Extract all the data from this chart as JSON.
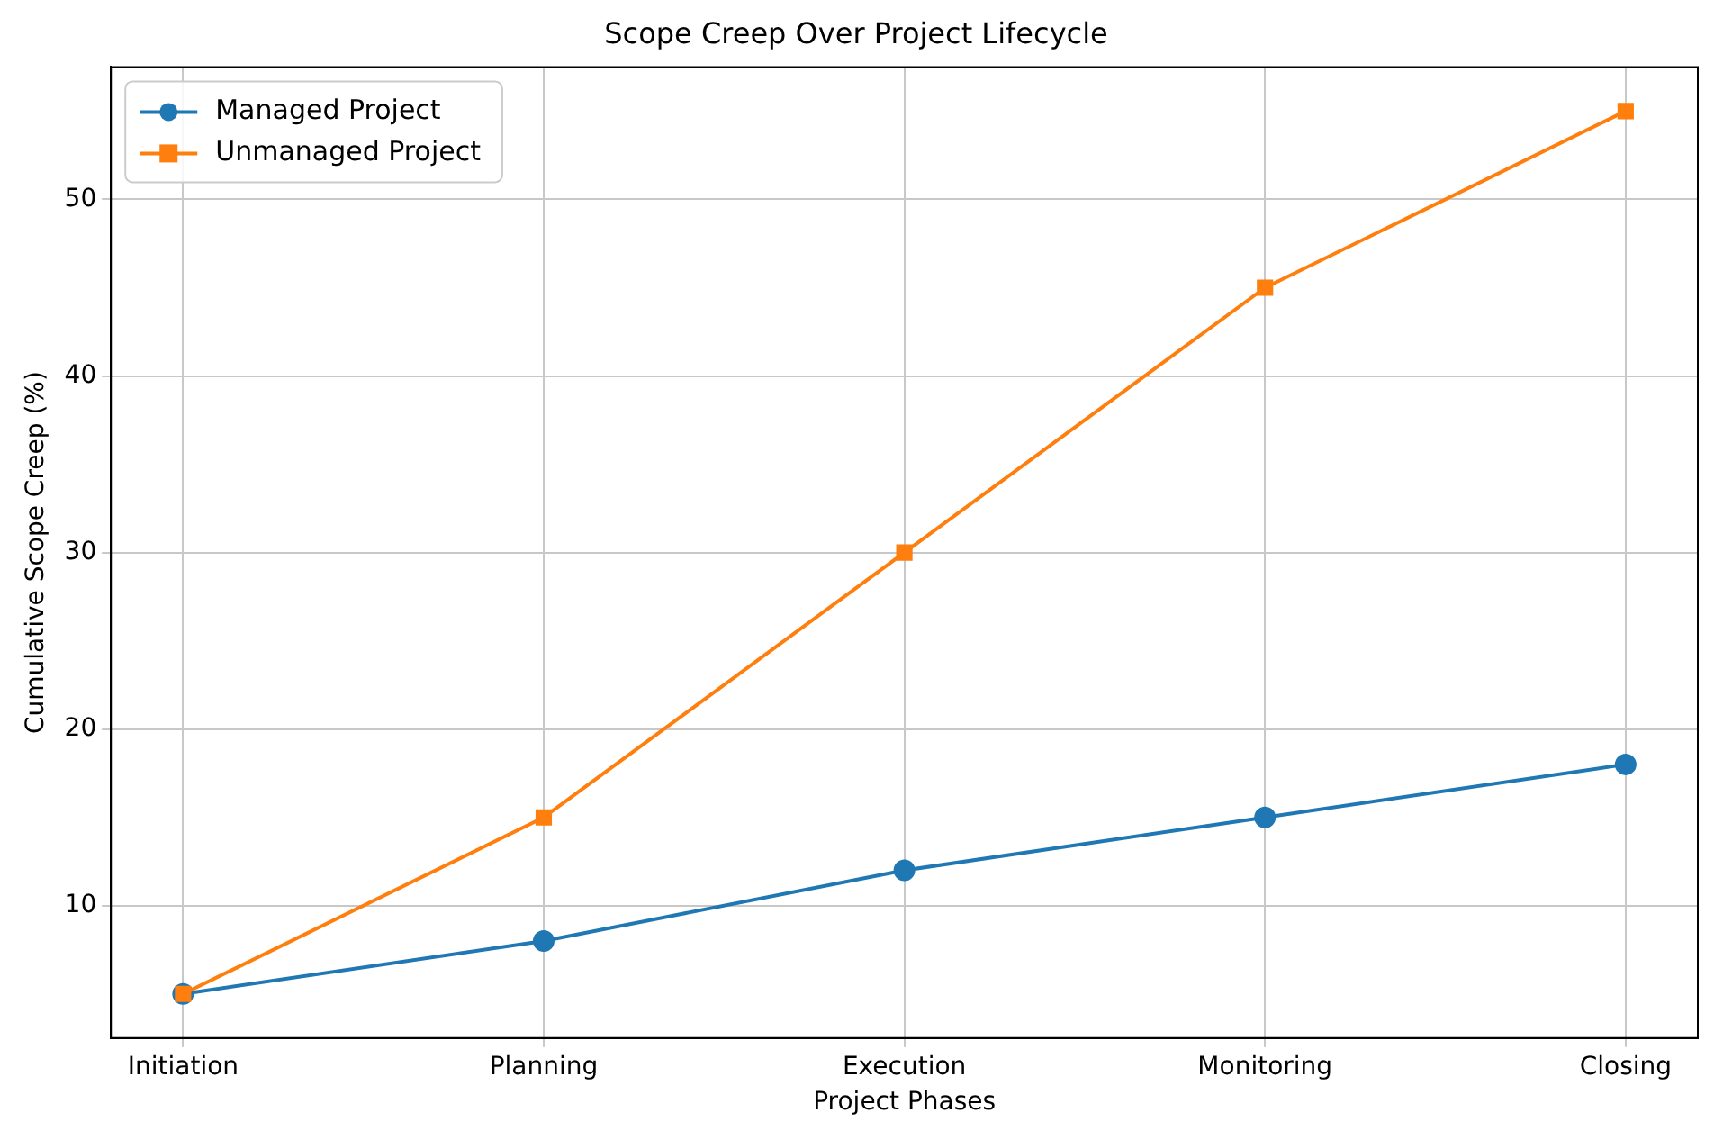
{
  "chart_data": {
    "type": "line",
    "title": "Scope Creep Over Project Lifecycle",
    "xlabel": "Project Phases",
    "ylabel": "Cumulative Scope Creep (%)",
    "categories": [
      "Initiation",
      "Planning",
      "Execution",
      "Monitoring",
      "Closing"
    ],
    "series": [
      {
        "name": "Managed Project",
        "color": "#1f77b4",
        "marker": "circle",
        "values": [
          5,
          8,
          12,
          15,
          18
        ]
      },
      {
        "name": "Unmanaged Project",
        "color": "#ff7f0e",
        "marker": "square",
        "values": [
          5,
          15,
          30,
          45,
          55
        ]
      }
    ],
    "ylim": [
      2.5,
      57.5
    ],
    "yticks": [
      10,
      20,
      30,
      40,
      50
    ],
    "grid": true,
    "legend": "top left",
    "line_style": "solid"
  }
}
